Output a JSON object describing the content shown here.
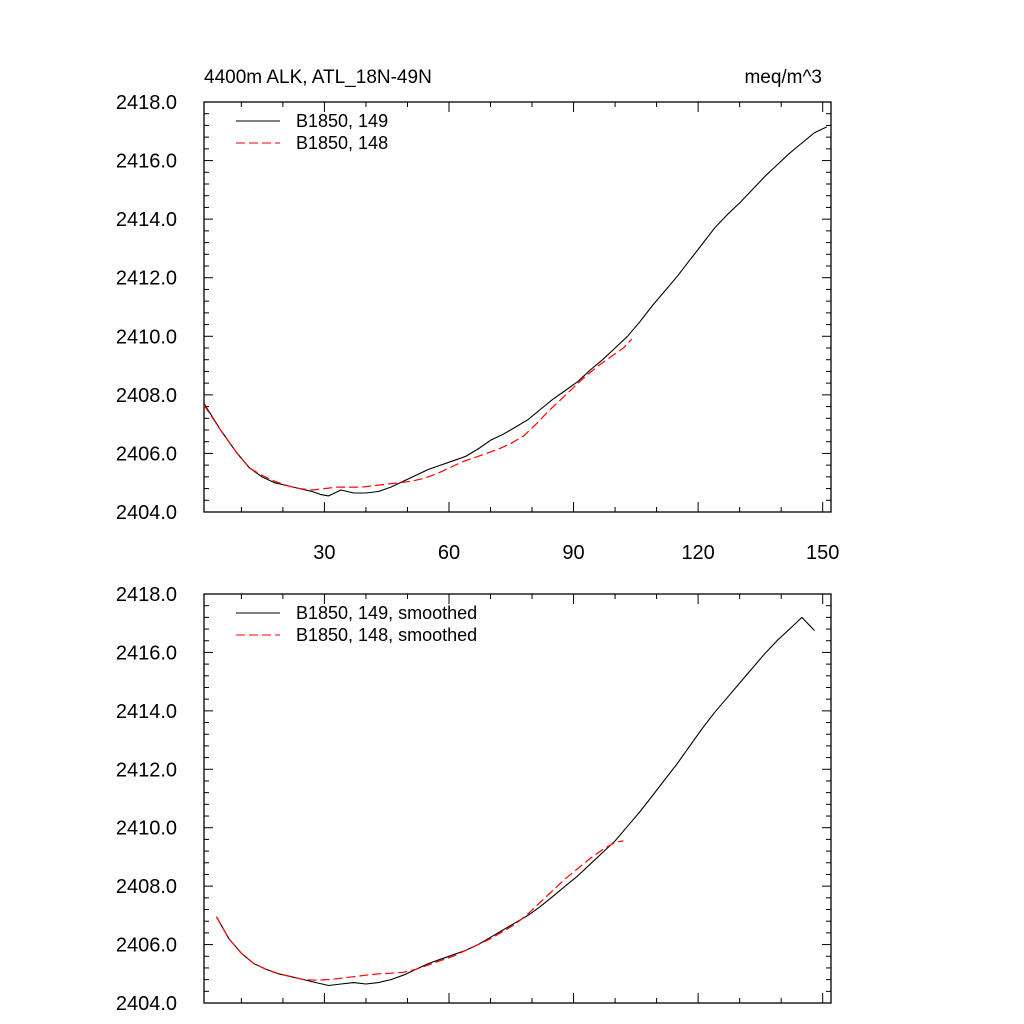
{
  "figure": {
    "title_left": "4400m ALK, ATL_18N-49N",
    "title_right": "meq/m^3"
  },
  "chart_data": [
    {
      "type": "line",
      "title": "4400m ALK, ATL_18N-49N",
      "units": "meq/m^3",
      "xlabel": "",
      "ylabel": "",
      "xlim": [
        1,
        152
      ],
      "ylim": [
        2404.0,
        2418.0
      ],
      "x_ticks": [
        30,
        60,
        90,
        120,
        150
      ],
      "x_tick_labels": [
        "30",
        "60",
        "90",
        "120",
        "150"
      ],
      "y_ticks": [
        2404.0,
        2406.0,
        2408.0,
        2410.0,
        2412.0,
        2414.0,
        2416.0,
        2418.0
      ],
      "y_tick_labels": [
        "2404.0",
        "2406.0",
        "2408.0",
        "2410.0",
        "2412.0",
        "2414.0",
        "2416.0",
        "2418.0"
      ],
      "grid": false,
      "legend_position": "top-left",
      "series": [
        {
          "name": "B1850, 149",
          "color": "#000000",
          "dash": "solid",
          "x": [
            1,
            5,
            9,
            12,
            15,
            18,
            21,
            24,
            27,
            29,
            31,
            34,
            37,
            40,
            43,
            46,
            49,
            52,
            55,
            58,
            61,
            64,
            67,
            70,
            73,
            76,
            79,
            82,
            85,
            88,
            91,
            94,
            97,
            100,
            103,
            106,
            109,
            112,
            115,
            118,
            121,
            124,
            127,
            130,
            133,
            136,
            139,
            142,
            145,
            148,
            151
          ],
          "y": [
            2407.7,
            2406.8,
            2406.0,
            2405.5,
            2405.2,
            2405.0,
            2404.9,
            2404.8,
            2404.7,
            2404.6,
            2404.55,
            2404.75,
            2404.65,
            2404.65,
            2404.7,
            2404.85,
            2405.05,
            2405.25,
            2405.45,
            2405.6,
            2405.75,
            2405.9,
            2406.15,
            2406.45,
            2406.65,
            2406.9,
            2407.15,
            2407.5,
            2407.85,
            2408.15,
            2408.45,
            2408.85,
            2409.2,
            2409.6,
            2410.0,
            2410.5,
            2411.05,
            2411.55,
            2412.05,
            2412.6,
            2413.15,
            2413.7,
            2414.15,
            2414.55,
            2415.0,
            2415.45,
            2415.85,
            2416.25,
            2416.6,
            2416.95,
            2417.15
          ]
        },
        {
          "name": "B1850, 148",
          "color": "#ff0000",
          "dash": "dashed",
          "x": [
            1,
            5,
            9,
            12,
            15,
            18,
            21,
            24,
            27,
            30,
            33,
            36,
            39,
            42,
            45,
            48,
            51,
            54,
            57,
            60,
            63,
            66,
            69,
            72,
            75,
            78,
            81,
            84,
            87,
            90,
            93,
            96,
            99,
            102,
            104
          ],
          "y": [
            2407.65,
            2406.8,
            2406.0,
            2405.5,
            2405.25,
            2405.05,
            2404.9,
            2404.8,
            2404.75,
            2404.8,
            2404.85,
            2404.85,
            2404.85,
            2404.9,
            2404.95,
            2405.0,
            2405.05,
            2405.15,
            2405.3,
            2405.5,
            2405.7,
            2405.85,
            2406.0,
            2406.15,
            2406.35,
            2406.6,
            2407.0,
            2407.45,
            2407.85,
            2408.25,
            2408.65,
            2409.0,
            2409.3,
            2409.6,
            2409.9
          ]
        }
      ]
    },
    {
      "type": "line",
      "title": "",
      "xlabel": "",
      "ylabel": "",
      "xlim": [
        1,
        152
      ],
      "ylim": [
        2404.0,
        2418.0
      ],
      "x_ticks": [
        30,
        60,
        90,
        120,
        150
      ],
      "x_tick_labels": [],
      "y_ticks": [
        2404.0,
        2406.0,
        2408.0,
        2410.0,
        2412.0,
        2414.0,
        2416.0,
        2418.0
      ],
      "y_tick_labels": [
        "2404.0",
        "2406.0",
        "2408.0",
        "2410.0",
        "2412.0",
        "2414.0",
        "2416.0",
        "2418.0"
      ],
      "grid": false,
      "legend_position": "top-left",
      "series": [
        {
          "name": "B1850, 149, smoothed",
          "color": "#000000",
          "dash": "solid",
          "x": [
            4,
            7,
            10,
            13,
            16,
            19,
            22,
            25,
            28,
            31,
            34,
            37,
            40,
            43,
            46,
            49,
            52,
            55,
            58,
            61,
            64,
            67,
            70,
            73,
            76,
            79,
            82,
            85,
            88,
            91,
            94,
            97,
            100,
            103,
            106,
            109,
            112,
            115,
            118,
            121,
            124,
            127,
            130,
            133,
            136,
            139,
            142,
            145,
            148
          ],
          "y": [
            2406.95,
            2406.2,
            2405.7,
            2405.35,
            2405.15,
            2405.0,
            2404.9,
            2404.8,
            2404.7,
            2404.6,
            2404.65,
            2404.7,
            2404.65,
            2404.7,
            2404.8,
            2404.95,
            2405.15,
            2405.35,
            2405.5,
            2405.65,
            2405.8,
            2406.0,
            2406.25,
            2406.5,
            2406.75,
            2407.0,
            2407.3,
            2407.65,
            2408.0,
            2408.35,
            2408.75,
            2409.15,
            2409.55,
            2410.05,
            2410.55,
            2411.1,
            2411.65,
            2412.2,
            2412.8,
            2413.4,
            2413.95,
            2414.45,
            2414.95,
            2415.45,
            2415.95,
            2416.4,
            2416.8,
            2417.2,
            2416.75
          ]
        },
        {
          "name": "B1850, 148, smoothed",
          "color": "#ff0000",
          "dash": "dashed",
          "x": [
            4,
            7,
            10,
            13,
            16,
            19,
            22,
            25,
            28,
            31,
            34,
            37,
            40,
            43,
            46,
            49,
            52,
            55,
            58,
            61,
            64,
            67,
            70,
            73,
            76,
            79,
            82,
            85,
            88,
            91,
            94,
            97,
            100,
            102
          ],
          "y": [
            2406.95,
            2406.2,
            2405.7,
            2405.35,
            2405.15,
            2405.0,
            2404.9,
            2404.8,
            2404.78,
            2404.8,
            2404.85,
            2404.9,
            2404.95,
            2405.0,
            2405.02,
            2405.05,
            2405.15,
            2405.3,
            2405.45,
            2405.6,
            2405.8,
            2406.0,
            2406.2,
            2406.45,
            2406.7,
            2407.05,
            2407.45,
            2407.85,
            2408.25,
            2408.6,
            2408.95,
            2409.25,
            2409.5,
            2409.55
          ]
        }
      ]
    }
  ]
}
